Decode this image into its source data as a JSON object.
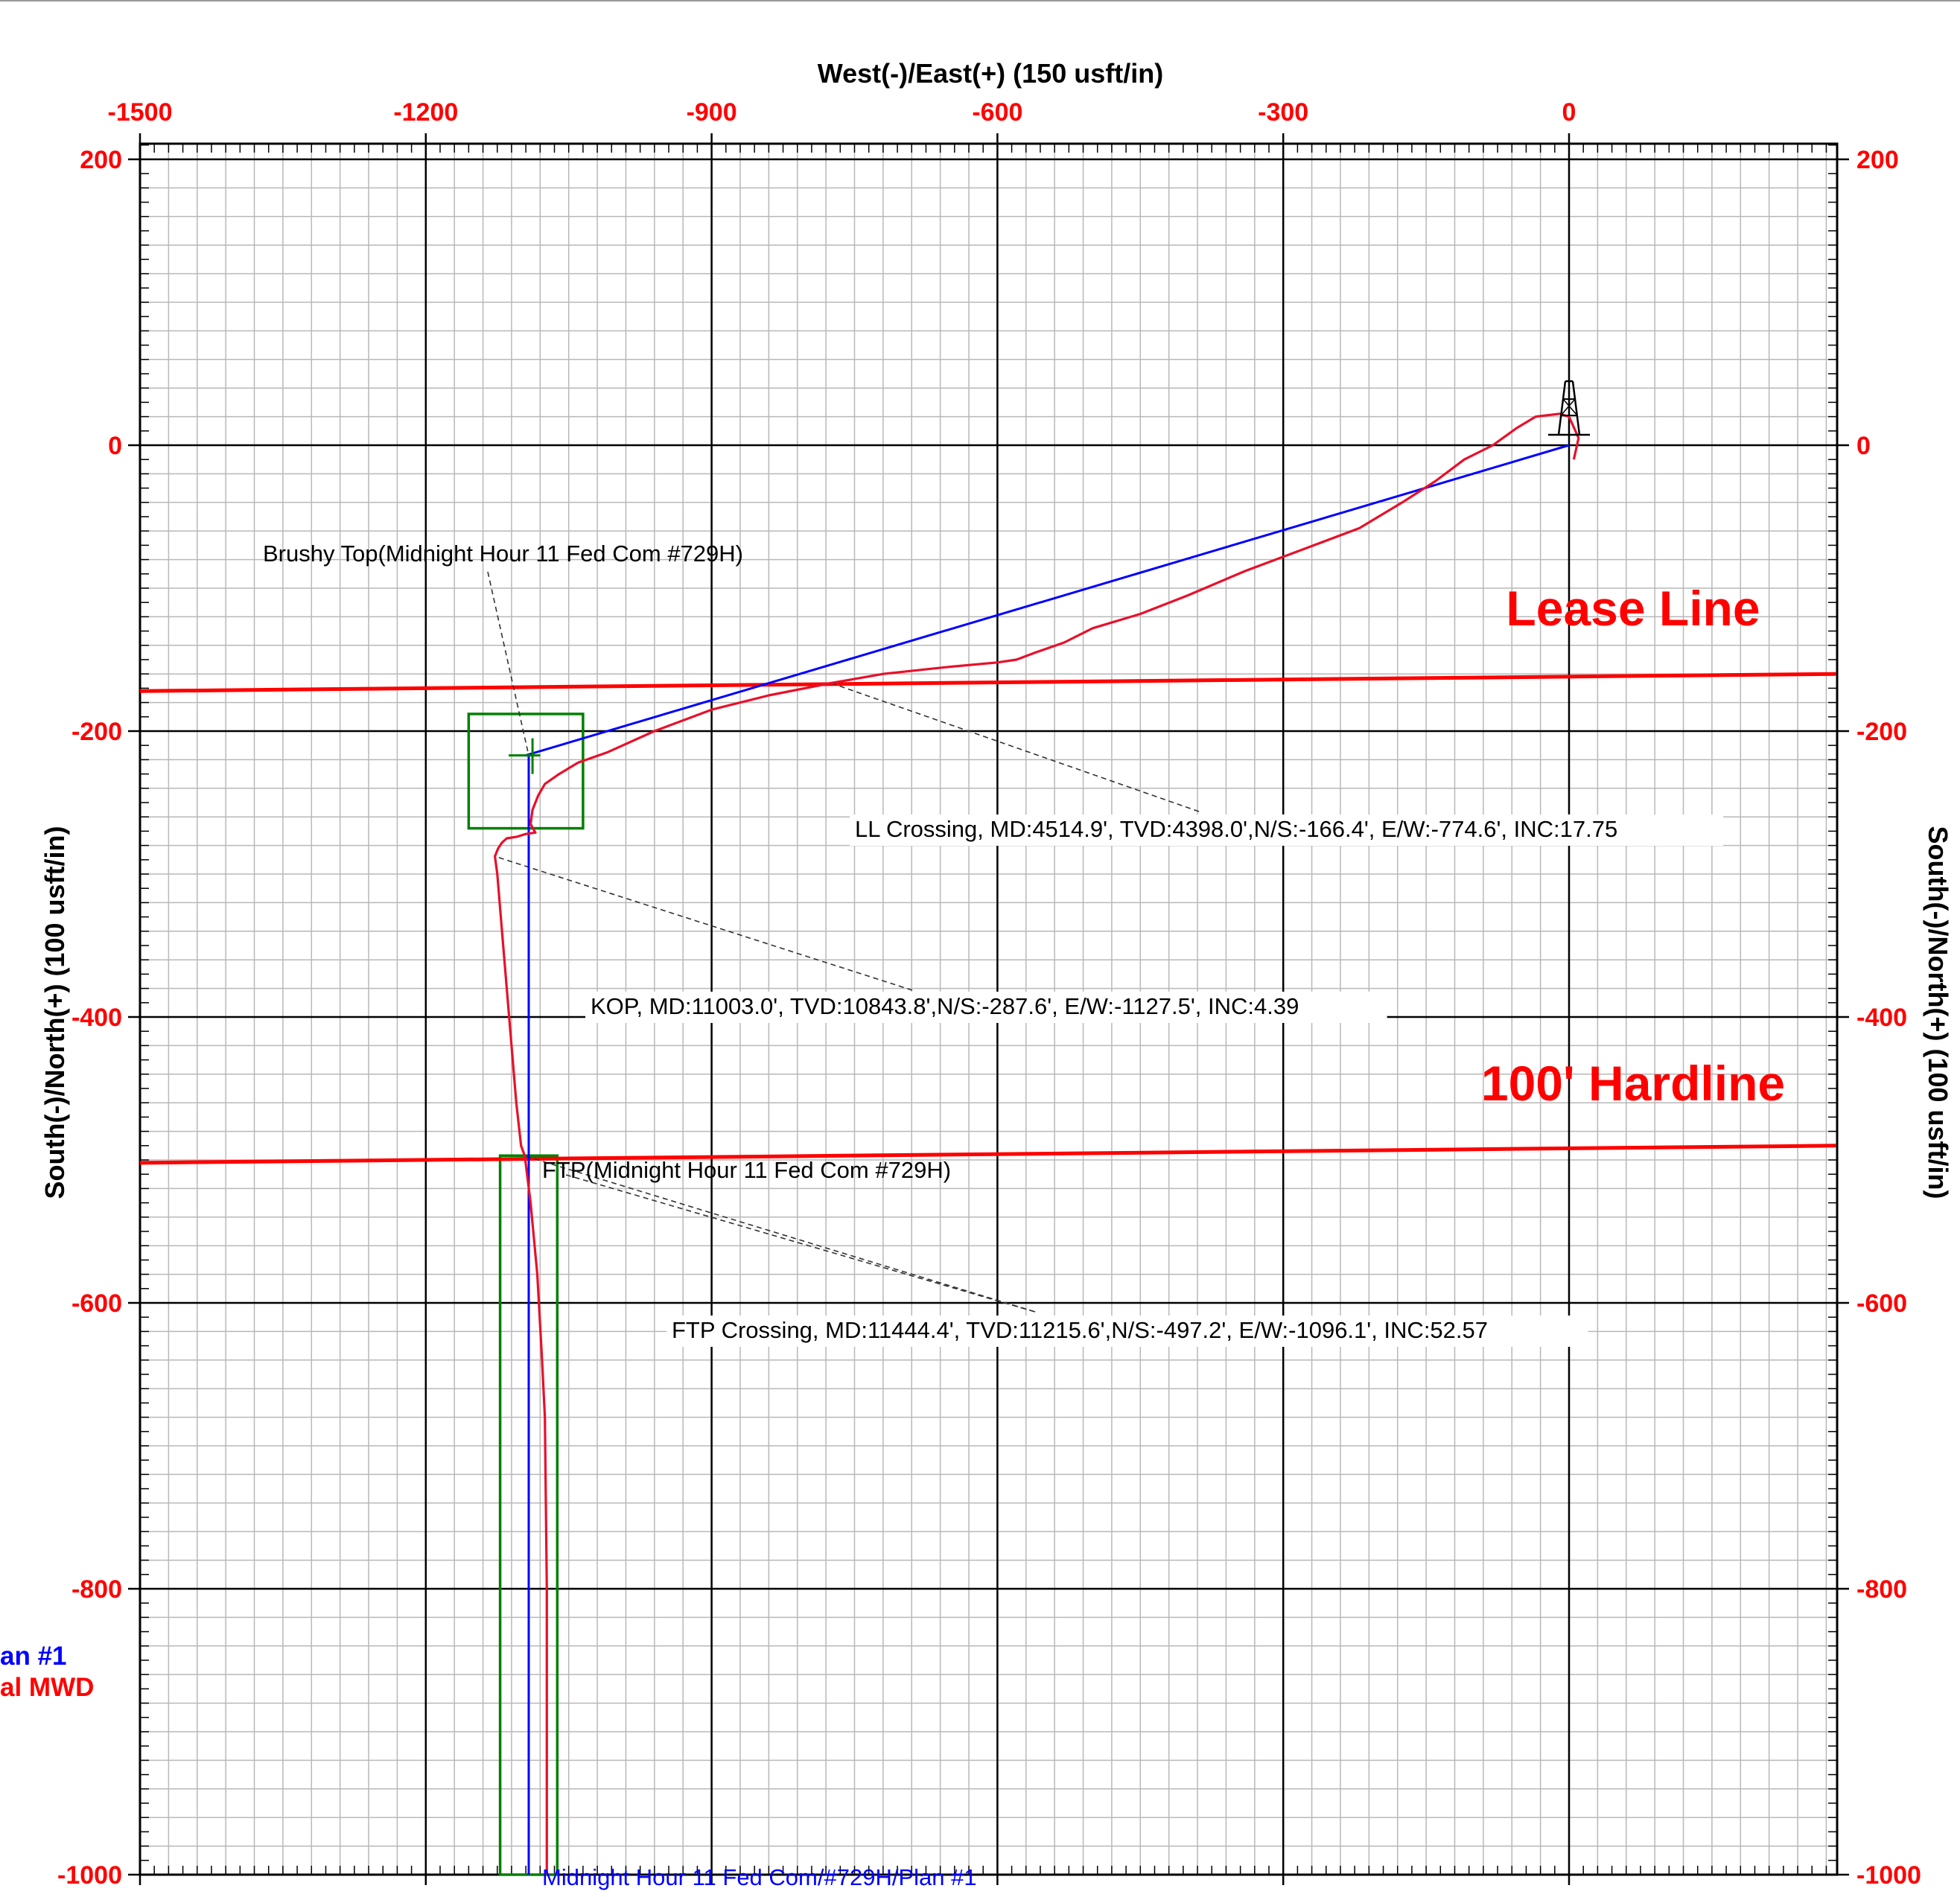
{
  "colors": {
    "plan": "#0000ff",
    "actual": "#e8102a",
    "target": "#008000",
    "label_red": "#ff0000",
    "grid_major": "#000000",
    "grid_minor": "#b8b8b8"
  },
  "chart_data": {
    "type": "line",
    "xlabel": "West(-)/East(+) (150 usft/in)",
    "ylabel_left": "South(-)/North(+) (100 usft/in)",
    "ylabel_right": "South(-)/North(+) (100 usft/in)",
    "xlim": [
      -1500,
      280
    ],
    "ylim": [
      -1000,
      210
    ],
    "grid": true,
    "x_ticks": [
      "-1500",
      "-1200",
      "-900",
      "-600",
      "-300",
      "0"
    ],
    "y_ticks": [
      "200",
      "0",
      "-200",
      "-400",
      "-600",
      "-800",
      "-1000"
    ],
    "legend_left": [
      "an #1",
      "al MWD"
    ],
    "series": [
      {
        "name": "Midnight Hour 11 Fed Com/#729H/Plan #1",
        "x": [
          0,
          -1095,
          -1092,
          -1092
        ],
        "y": [
          0,
          -217,
          -217,
          -1000
        ]
      },
      {
        "name": "al MWD",
        "x": [
          5,
          10,
          0,
          -10,
          -35,
          -55,
          -80,
          -110,
          -140,
          -175,
          -220,
          -280,
          -340,
          -400,
          -450,
          -500,
          -530,
          -560,
          -580,
          -600,
          -650,
          -720,
          -774.6,
          -840,
          -900,
          -960,
          -1010,
          -1040,
          -1060,
          -1075,
          -1082,
          -1088,
          -1090,
          -1085,
          -1095,
          -1105,
          -1115,
          -1120,
          -1124,
          -1127.5,
          -1125,
          -1120,
          -1115,
          -1110,
          -1105,
          -1100,
          -1096.1,
          -1090,
          -1083,
          -1078,
          -1075,
          -1074,
          -1073,
          -1073
        ],
        "y": [
          -10,
          5,
          20,
          22,
          20,
          12,
          0,
          -10,
          -25,
          -40,
          -58,
          -73,
          -88,
          -105,
          -118,
          -128,
          -138,
          -145,
          -150,
          -152,
          -155,
          -160,
          -166.4,
          -175,
          -185,
          -200,
          -215,
          -222,
          -230,
          -237,
          -245,
          -255,
          -265,
          -271,
          -272,
          -274,
          -275,
          -278,
          -282,
          -287.6,
          -300,
          -340,
          -380,
          -420,
          -460,
          -490,
          -497.2,
          -530,
          -580,
          -640,
          -680,
          -740,
          -800,
          -1000
        ]
      }
    ],
    "hardlines": [
      {
        "label": "Lease Line",
        "x": [
          -1500,
          280
        ],
        "y": [
          -172,
          -160
        ]
      },
      {
        "label": "100' Hardline",
        "x": [
          -1500,
          280
        ],
        "y": [
          -502,
          -490
        ]
      }
    ],
    "targets": [
      {
        "name": "target-box-kop",
        "x": [
          -1155,
          -1035
        ],
        "y": [
          -268,
          -188
        ]
      },
      {
        "name": "target-box-lateral",
        "x": [
          -1122,
          -1062
        ],
        "y": [
          -1000,
          -497
        ]
      }
    ],
    "annotations": [
      {
        "name": "brushy-top",
        "text": "Brushy Top(Midnight Hour 11 Fed Com #729H)",
        "point": [
          -1092,
          -217
        ]
      },
      {
        "name": "ll-crossing",
        "text": "LL Crossing, MD:4514.9', TVD:4398.0',N/S:-166.4', E/W:-774.6', INC:17.75",
        "point": [
          -774.6,
          -166.4
        ]
      },
      {
        "name": "kop",
        "text": "KOP, MD:11003.0', TVD:10843.8',N/S:-287.6', E/W:-1127.5', INC:4.39",
        "point": [
          -1127.5,
          -287.6
        ]
      },
      {
        "name": "ftp",
        "text": "FTP(Midnight Hour 11 Fed Com #729H)",
        "point": [
          -1092,
          -497
        ]
      },
      {
        "name": "ftp-crossing",
        "text": "FTP Crossing, MD:11444.4', TVD:11215.6',N/S:-497.2', E/W:-1096.1', INC:52.57",
        "point": [
          -1096.1,
          -497.2
        ]
      }
    ],
    "plan_label": "Midnight Hour 11 Fed Com/#729H/Plan #1"
  }
}
